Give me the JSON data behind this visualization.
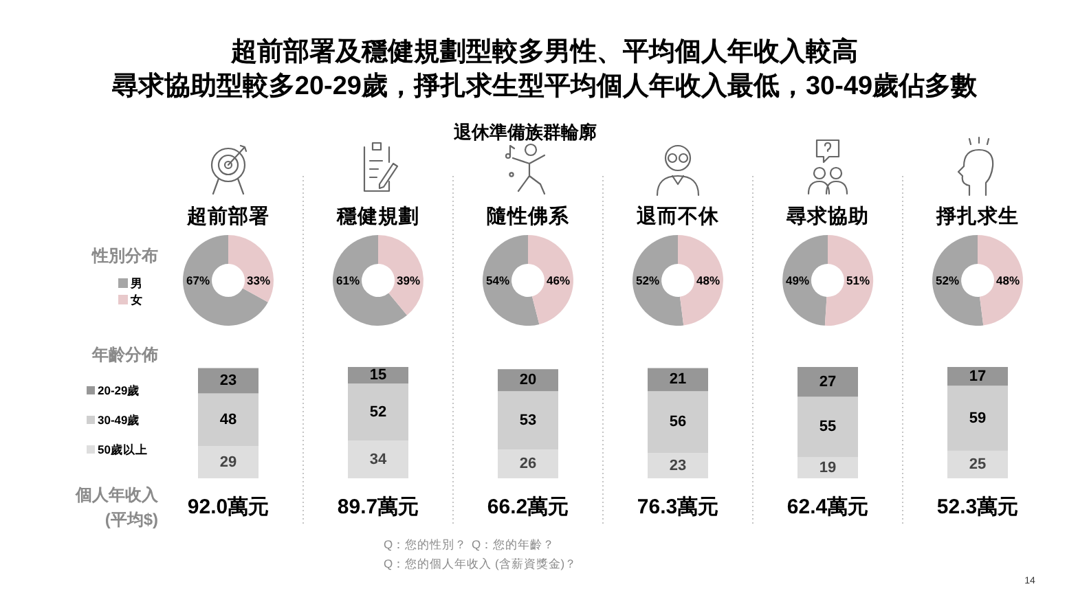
{
  "chart_data": [
    {
      "type": "other",
      "title": "超前部署及穩健規劃型較多男性、平均個人年收入較高",
      "subtitle": "尋求協助型較多20-29歲，掙扎求生型平均個人年收入最低，30-49歲佔多數",
      "annotations": [
        "退休準備族群輪廓",
        "Q：您的性別？",
        "Q：您的年齡？",
        "Q：您的個人年收入 (含薪資獎金)？",
        "14"
      ]
    },
    {
      "type": "donut",
      "title": "超前部署",
      "categories": [
        "男",
        "女"
      ],
      "values": [
        67,
        33
      ],
      "colors": [
        "#a6a6a6",
        "#e8c9cb"
      ],
      "value_labels": [
        "67%",
        "33%"
      ],
      "legend": "left",
      "legend_title": "性別分布"
    },
    {
      "type": "donut",
      "title": "穩健規劃",
      "categories": [
        null,
        null
      ],
      "values": [
        61,
        39
      ],
      "colors": [
        "#a6a6a6",
        "#e8c9cb"
      ],
      "value_labels": [
        "61%",
        "39%"
      ]
    },
    {
      "type": "donut",
      "title": "隨性佛系",
      "categories": [
        null,
        null
      ],
      "values": [
        54,
        46
      ],
      "colors": [
        "#a6a6a6",
        "#e8c9cb"
      ],
      "value_labels": [
        "54%",
        "46%"
      ]
    },
    {
      "type": "donut",
      "title": "退而不休",
      "categories": [
        null,
        null
      ],
      "values": [
        52,
        48
      ],
      "colors": [
        "#a6a6a6",
        "#e8c9cb"
      ],
      "value_labels": [
        "52%",
        "48%"
      ]
    },
    {
      "type": "donut",
      "title": "尋求協助",
      "categories": [
        null,
        null
      ],
      "values": [
        49,
        51
      ],
      "colors": [
        "#a6a6a6",
        "#e8c9cb"
      ],
      "value_labels": [
        "49%",
        "51%"
      ]
    },
    {
      "type": "donut",
      "title": "掙扎求生",
      "categories": [
        null,
        null
      ],
      "values": [
        52,
        48
      ],
      "colors": [
        "#a6a6a6",
        "#e8c9cb"
      ],
      "value_labels": [
        "52%",
        "48%"
      ]
    },
    {
      "type": "bar",
      "stacked": true,
      "categories": [
        null,
        null,
        null,
        null,
        null,
        null
      ],
      "data_labels": true,
      "legend": "left",
      "legend_title": "年齡分佈",
      "series": [
        {
          "name": "50歲以上",
          "color": "#dedede",
          "values": [
            29,
            34,
            26,
            23,
            19,
            25
          ]
        },
        {
          "name": "30-49歲",
          "color": "#cfcfcf",
          "values": [
            48,
            52,
            53,
            56,
            55,
            59
          ]
        },
        {
          "name": "20-29歲",
          "color": "#979797",
          "values": [
            23,
            15,
            20,
            21,
            27,
            17
          ]
        }
      ]
    },
    {
      "type": "other",
      "ylabel": "個人年收入 (平均$)",
      "values": [
        92.0,
        89.7,
        66.2,
        76.3,
        62.4,
        52.3
      ],
      "value_labels": [
        "92.0萬元",
        "89.7萬元",
        "66.2萬元",
        "76.3萬元",
        "62.4萬元",
        "52.3萬元"
      ]
    }
  ]
}
